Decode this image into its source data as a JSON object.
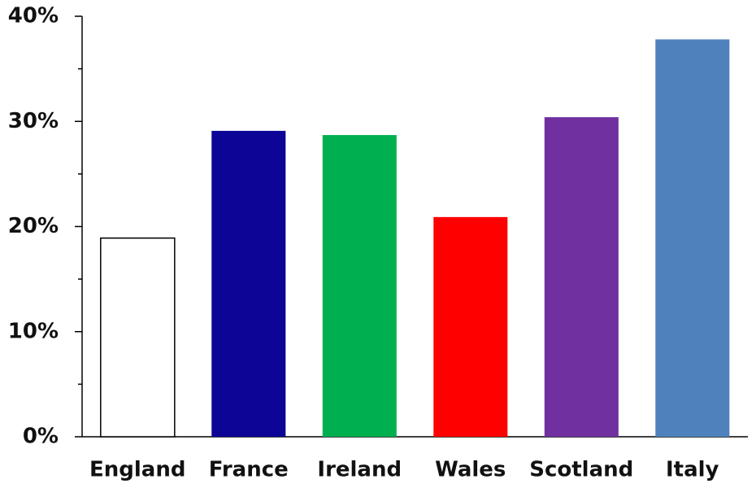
{
  "chart_data": {
    "type": "bar",
    "categories": [
      "England",
      "France",
      "Ireland",
      "Wales",
      "Scotland",
      "Italy"
    ],
    "values": [
      18.9,
      29.1,
      28.7,
      20.9,
      30.4,
      37.8
    ],
    "colors": [
      "#ffffff",
      "#0c0595",
      "#00b050",
      "#ff0000",
      "#7030a0",
      "#4f81bd"
    ],
    "ylim": [
      0,
      40
    ],
    "yticks": [
      {
        "value": 0,
        "label": "0%"
      },
      {
        "value": 10,
        "label": "10%"
      },
      {
        "value": 20,
        "label": "20%"
      },
      {
        "value": 30,
        "label": "30%"
      },
      {
        "value": 40,
        "label": "40%"
      }
    ],
    "yminorticks": [
      5,
      15,
      25,
      35
    ],
    "grid": false
  }
}
